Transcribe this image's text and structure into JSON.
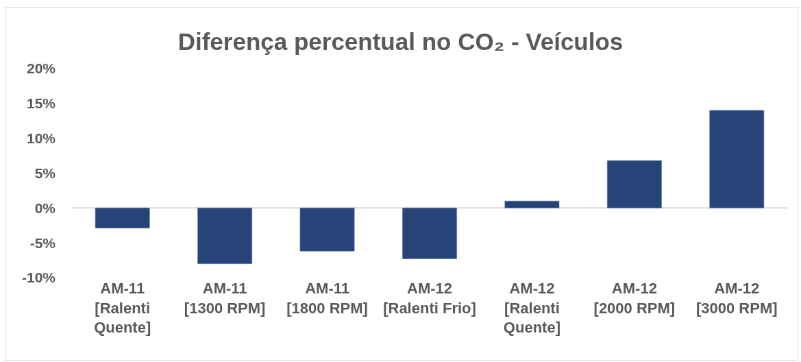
{
  "chart_data": {
    "type": "bar",
    "title": "Diferença percentual no CO₂ - Veículos",
    "categories": [
      "AM-11 [Ralenti Quente]",
      "AM-11 [1300 RPM]",
      "AM-11 [1800 RPM]",
      "AM-12 [Ralenti Frio]",
      "AM-12 [Ralenti Quente]",
      "AM-12 [2000 RPM]",
      "AM-12 [3000 RPM]"
    ],
    "values": [
      -2.9,
      -8.0,
      -6.2,
      -7.3,
      1.0,
      6.8,
      14.0
    ],
    "color": "#264478",
    "ylim": [
      -10,
      20
    ],
    "yticks": [
      {
        "value": -10,
        "label": "-10%"
      },
      {
        "value": -5,
        "label": "-5%"
      },
      {
        "value": 0,
        "label": "0%"
      },
      {
        "value": 5,
        "label": "5%"
      },
      {
        "value": 10,
        "label": "10%"
      },
      {
        "value": 15,
        "label": "15%"
      },
      {
        "value": 20,
        "label": "20%"
      }
    ],
    "ref_lines": [
      {
        "axis": "y",
        "value": 0,
        "color": "#d9d9d9"
      }
    ],
    "grid": false
  }
}
